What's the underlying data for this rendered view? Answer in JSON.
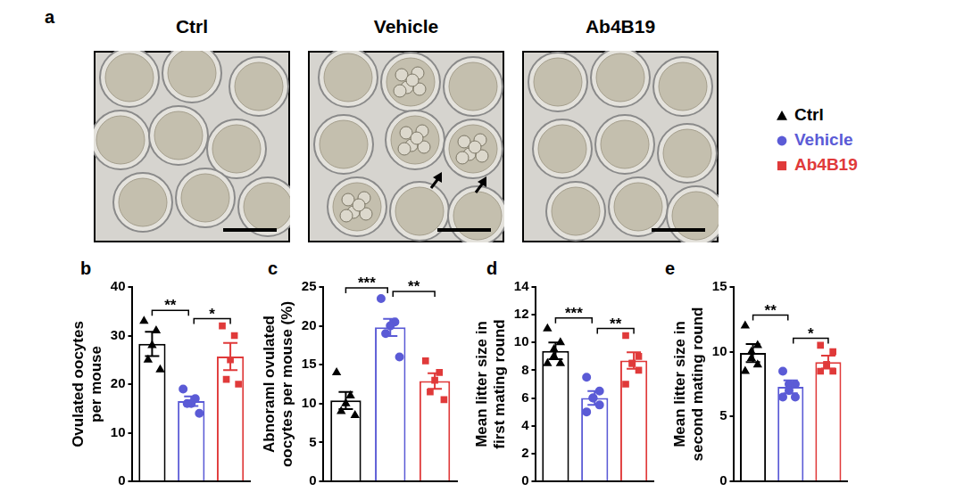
{
  "images": {
    "panel": "a",
    "panels": [
      {
        "title": "Ctrl"
      },
      {
        "title": "Vehicle"
      },
      {
        "title": "Ab4B19"
      }
    ]
  },
  "legend": {
    "items": [
      {
        "name": "Ctrl",
        "color": "#000000",
        "marker": "triangle"
      },
      {
        "name": "Vehicle",
        "color": "#5b5bd6",
        "marker": "circle"
      },
      {
        "name": "Ab4B19",
        "color": "#e03a3a",
        "marker": "square"
      }
    ]
  },
  "chart_data": [
    {
      "type": "bar",
      "panel": "b",
      "y_label": [
        "Ovulated oocytes",
        "per mouse"
      ],
      "categories": [
        null,
        null,
        null
      ],
      "values": [
        28.3,
        16.5,
        25.7
      ],
      "errors": [
        2.5,
        1.0,
        2.8
      ],
      "points": [
        [
          33,
          31,
          28,
          25,
          23
        ],
        [
          19,
          17,
          16,
          16,
          14
        ],
        [
          32,
          30,
          25,
          21,
          20
        ]
      ],
      "colors": [
        "#000000",
        "#5b5bd6",
        "#e03a3a"
      ],
      "ylim": [
        0,
        40
      ],
      "yticks": [
        0,
        10,
        20,
        30,
        40
      ],
      "grid": false,
      "tick_labels": "y",
      "annotations": [
        {
          "from": 0,
          "to": 1,
          "text": "**"
        },
        {
          "from": 1,
          "to": 2,
          "text": "*"
        }
      ]
    },
    {
      "type": "bar",
      "panel": "c",
      "y_label": [
        "Abnoraml ovulated",
        "oocytes per mouse (%)"
      ],
      "categories": [
        null,
        null,
        null
      ],
      "values": [
        10.4,
        19.8,
        12.9
      ],
      "errors": [
        1.1,
        1.1,
        1.0
      ],
      "points": [
        [
          14,
          11,
          10,
          9,
          8.5
        ],
        [
          23.5,
          20.5,
          20,
          19,
          16
        ],
        [
          15.5,
          14,
          13,
          11.5,
          10.5
        ]
      ],
      "colors": [
        "#000000",
        "#5b5bd6",
        "#e03a3a"
      ],
      "ylim": [
        0,
        25
      ],
      "yticks": [
        0,
        5,
        10,
        15,
        20,
        25
      ],
      "grid": false,
      "tick_labels": "y",
      "annotations": [
        {
          "from": 0,
          "to": 1,
          "text": "***"
        },
        {
          "from": 1,
          "to": 2,
          "text": "**"
        }
      ]
    },
    {
      "type": "bar",
      "panel": "d",
      "y_label": [
        "Mean litter size in",
        "first mating round"
      ],
      "categories": [
        null,
        null,
        null
      ],
      "values": [
        9.4,
        6.0,
        8.7
      ],
      "errors": [
        0.6,
        0.5,
        0.6
      ],
      "points": [
        [
          11,
          10,
          9.5,
          9,
          8.5,
          8.5
        ],
        [
          7.5,
          6.5,
          6,
          6,
          5.5,
          5
        ],
        [
          10.5,
          9,
          8.5,
          8.5,
          8,
          7
        ]
      ],
      "colors": [
        "#000000",
        "#5b5bd6",
        "#e03a3a"
      ],
      "ylim": [
        0,
        14
      ],
      "yticks": [
        0,
        2,
        4,
        6,
        8,
        10,
        12,
        14
      ],
      "grid": false,
      "tick_labels": "y",
      "annotations": [
        {
          "from": 0,
          "to": 1,
          "text": "***"
        },
        {
          "from": 1,
          "to": 2,
          "text": "**"
        }
      ]
    },
    {
      "type": "bar",
      "panel": "e",
      "y_label": [
        "Mean litter size in",
        "second mating round"
      ],
      "categories": [
        null,
        null,
        null
      ],
      "values": [
        9.9,
        7.3,
        9.2
      ],
      "errors": [
        0.7,
        0.5,
        0.5
      ],
      "points": [
        [
          12,
          10.5,
          10,
          9.5,
          9,
          8.5
        ],
        [
          8.5,
          7.5,
          7.5,
          7,
          6.5,
          6.5
        ],
        [
          10.5,
          10,
          9,
          9,
          8.5,
          8.5
        ]
      ],
      "colors": [
        "#000000",
        "#5b5bd6",
        "#e03a3a"
      ],
      "ylim": [
        0,
        15
      ],
      "yticks": [
        0,
        5,
        10,
        15
      ],
      "grid": false,
      "tick_labels": "y",
      "annotations": [
        {
          "from": 0,
          "to": 1,
          "text": "**"
        },
        {
          "from": 1,
          "to": 2,
          "text": "*"
        }
      ]
    }
  ]
}
